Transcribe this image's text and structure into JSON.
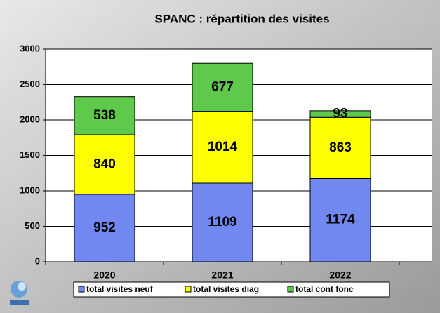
{
  "chart_data": {
    "type": "stacked_bar",
    "title": "SPANC : répartition des visites",
    "categories": [
      "2020",
      "2021",
      "2022"
    ],
    "series": [
      {
        "name": "total visites neuf",
        "color": "#7088f0",
        "values": [
          952,
          1109,
          1174
        ]
      },
      {
        "name": "total visites diag",
        "color": "#ffff00",
        "values": [
          840,
          1014,
          863
        ]
      },
      {
        "name": "total cont fonc",
        "color": "#5ec94a",
        "values": [
          538,
          677,
          93
        ]
      }
    ],
    "ylim": [
      0,
      3000
    ],
    "yticks": [
      0,
      500,
      1000,
      1500,
      2000,
      2500,
      3000
    ],
    "grid": true,
    "legend": "bottom"
  }
}
